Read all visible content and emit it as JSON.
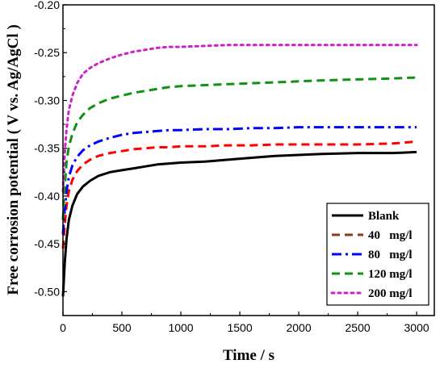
{
  "chart_data": {
    "type": "line",
    "title": "",
    "xlabel": "Time / s",
    "ylabel": "Free corrosion potential ( V vs. Ag/AgCl )",
    "xlim": [
      0,
      3150
    ],
    "ylim": [
      -0.525,
      -0.2
    ],
    "xticks": [
      0,
      500,
      1000,
      1500,
      2000,
      2500,
      3000
    ],
    "xtick_labels": [
      "0",
      "500",
      "1000",
      "1500",
      "2000",
      "2500",
      "3000"
    ],
    "yticks": [
      -0.5,
      -0.45,
      -0.4,
      -0.35,
      -0.3,
      -0.25,
      -0.2
    ],
    "ytick_labels": [
      "-0.50",
      "-0.45",
      "-0.40",
      "-0.35",
      "-0.30",
      "-0.25",
      "-0.20"
    ],
    "grid": false,
    "legend_position": "bottom-right",
    "series": [
      {
        "name": "Blank",
        "color": "#000000",
        "style": "solid",
        "x": [
          0,
          15,
          30,
          50,
          80,
          120,
          170,
          230,
          300,
          400,
          500,
          600,
          700,
          800,
          900,
          1000,
          1200,
          1400,
          1600,
          1800,
          2000,
          2200,
          2500,
          2800,
          3000
        ],
        "y": [
          -0.505,
          -0.47,
          -0.445,
          -0.425,
          -0.41,
          -0.398,
          -0.39,
          -0.384,
          -0.379,
          -0.375,
          -0.373,
          -0.371,
          -0.369,
          -0.367,
          -0.366,
          -0.365,
          -0.364,
          -0.362,
          -0.36,
          -0.358,
          -0.357,
          -0.356,
          -0.355,
          -0.355,
          -0.354
        ]
      },
      {
        "name": "40 mg/l",
        "color": "#ff0000",
        "style": "dashed",
        "x": [
          0,
          15,
          30,
          50,
          80,
          120,
          170,
          230,
          300,
          400,
          500,
          600,
          700,
          800,
          900,
          1000,
          1200,
          1400,
          1600,
          1800,
          2000,
          2200,
          2500,
          2800,
          3000
        ],
        "y": [
          -0.455,
          -0.43,
          -0.41,
          -0.395,
          -0.383,
          -0.374,
          -0.367,
          -0.362,
          -0.358,
          -0.355,
          -0.353,
          -0.351,
          -0.35,
          -0.349,
          -0.349,
          -0.348,
          -0.348,
          -0.347,
          -0.347,
          -0.346,
          -0.346,
          -0.346,
          -0.346,
          -0.345,
          -0.343
        ]
      },
      {
        "name": "80 mg/l",
        "color": "#0000ff",
        "style": "dashdot",
        "x": [
          0,
          15,
          30,
          50,
          80,
          120,
          170,
          230,
          300,
          400,
          500,
          600,
          700,
          800,
          900,
          1000,
          1200,
          1400,
          1600,
          1800,
          2000,
          2200,
          2500,
          2800,
          3000
        ],
        "y": [
          -0.44,
          -0.415,
          -0.395,
          -0.38,
          -0.368,
          -0.359,
          -0.352,
          -0.347,
          -0.343,
          -0.339,
          -0.336,
          -0.334,
          -0.333,
          -0.332,
          -0.331,
          -0.331,
          -0.33,
          -0.33,
          -0.329,
          -0.329,
          -0.328,
          -0.328,
          -0.328,
          -0.328,
          -0.328
        ]
      },
      {
        "name": "120 mg/l",
        "color": "#119011",
        "style": "dashed",
        "x": [
          0,
          15,
          30,
          50,
          80,
          120,
          170,
          230,
          300,
          400,
          500,
          600,
          700,
          800,
          900,
          1000,
          1200,
          1400,
          1600,
          1800,
          2000,
          2200,
          2500,
          2800,
          3000
        ],
        "y": [
          -0.425,
          -0.39,
          -0.365,
          -0.348,
          -0.335,
          -0.323,
          -0.315,
          -0.308,
          -0.303,
          -0.298,
          -0.295,
          -0.292,
          -0.29,
          -0.288,
          -0.286,
          -0.285,
          -0.284,
          -0.283,
          -0.282,
          -0.281,
          -0.28,
          -0.279,
          -0.278,
          -0.277,
          -0.276
        ]
      },
      {
        "name": "200 mg/l",
        "color": "#cc22cc",
        "style": "dotted",
        "x": [
          0,
          15,
          30,
          50,
          80,
          120,
          170,
          230,
          300,
          400,
          500,
          600,
          700,
          800,
          900,
          1000,
          1200,
          1400,
          1600,
          1800,
          2000,
          2200,
          2500,
          2800,
          3000
        ],
        "y": [
          -0.395,
          -0.355,
          -0.33,
          -0.31,
          -0.295,
          -0.282,
          -0.272,
          -0.266,
          -0.261,
          -0.256,
          -0.252,
          -0.249,
          -0.247,
          -0.245,
          -0.244,
          -0.244,
          -0.243,
          -0.242,
          -0.242,
          -0.242,
          -0.242,
          -0.242,
          -0.242,
          -0.242,
          -0.242
        ]
      }
    ],
    "legend": [
      {
        "label": "Blank",
        "color": "#000000",
        "style": "solid"
      },
      {
        "label": "40   mg/l",
        "color": "#8b3a1a",
        "style": "dashed"
      },
      {
        "label": "80   mg/l",
        "color": "#0000ff",
        "style": "dashdot"
      },
      {
        "label": "120 mg/l",
        "color": "#119011",
        "style": "dashed"
      },
      {
        "label": "200 mg/l",
        "color": "#cc22cc",
        "style": "dotted"
      }
    ]
  }
}
